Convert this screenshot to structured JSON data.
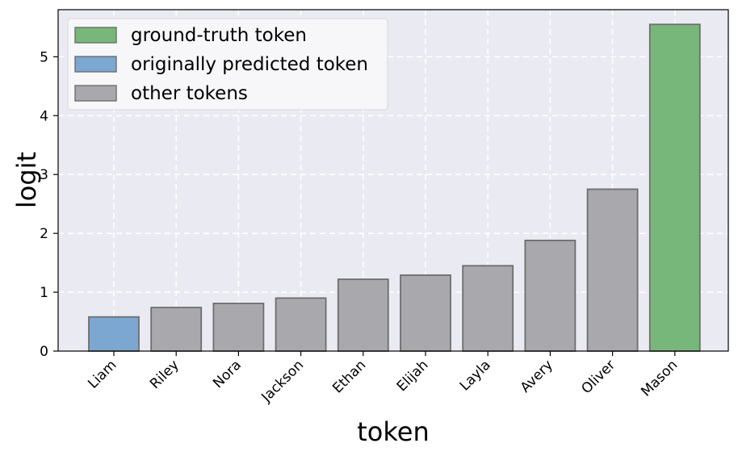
{
  "chart_data": {
    "type": "bar",
    "title": "",
    "xlabel": "token",
    "ylabel": "logit",
    "categories": [
      "Liam",
      "Riley",
      "Nora",
      "Jackson",
      "Ethan",
      "Elijah",
      "Layla",
      "Avery",
      "Oliver",
      "Mason"
    ],
    "values": [
      0.58,
      0.74,
      0.81,
      0.9,
      1.22,
      1.29,
      1.45,
      1.88,
      2.75,
      5.55
    ],
    "bar_groups": [
      "predicted",
      "other",
      "other",
      "other",
      "other",
      "other",
      "other",
      "other",
      "other",
      "truth"
    ],
    "ylim": [
      0,
      5.8
    ],
    "yticks": [
      0,
      1,
      2,
      3,
      4,
      5
    ],
    "grid": true,
    "legend_position": "top-left",
    "legend": [
      {
        "key": "truth",
        "label": "ground-truth token",
        "color": "#77b87a"
      },
      {
        "key": "predicted",
        "label": "originally predicted token",
        "color": "#7ba7d1"
      },
      {
        "key": "other",
        "label": "other tokens",
        "color": "#a9a8ad"
      }
    ],
    "colors": {
      "plot_background": "#eaeaf2",
      "bar_edge": "#6e6e6e",
      "grid": "#ffffff"
    }
  }
}
